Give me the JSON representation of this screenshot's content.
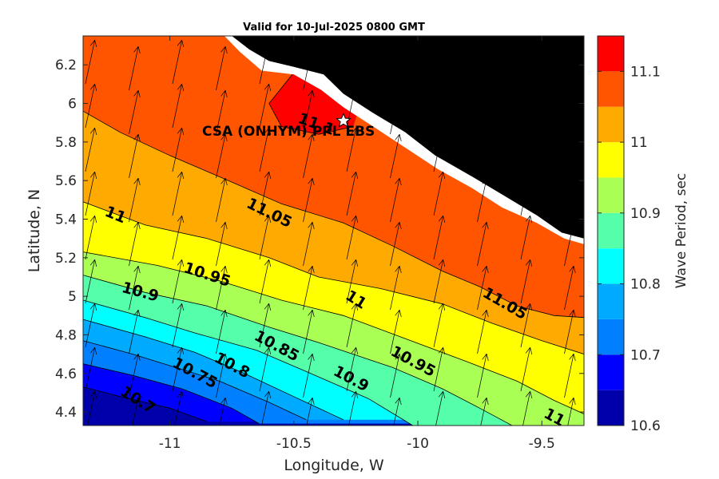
{
  "chart_data": {
    "type": "contour",
    "title": "Valid for 10-Jul-2025 0800 GMT",
    "xlabel": "Longitude, W",
    "ylabel": "Latitude, N",
    "xlim": [
      -11.35,
      -9.33
    ],
    "ylim": [
      4.33,
      6.35
    ],
    "x_ticks": [
      -11,
      -10.5,
      -10,
      -9.5
    ],
    "x_tick_labels": [
      "-11",
      "-10.5",
      "-10",
      "-9.5"
    ],
    "y_ticks": [
      4.4,
      4.6,
      4.8,
      5.0,
      5.2,
      5.4,
      5.6,
      5.8,
      6.0,
      6.2
    ],
    "y_tick_labels": [
      "4.4",
      "4.6",
      "4.8",
      "5",
      "5.2",
      "5.4",
      "5.6",
      "5.8",
      "6",
      "6.2"
    ],
    "colorbar": {
      "label": "Wave Period, sec",
      "range": [
        10.6,
        11.15
      ],
      "tick_values": [
        10.6,
        10.7,
        10.8,
        10.9,
        11.0,
        11.1
      ],
      "tick_labels": [
        "10.6",
        "10.7",
        "10.8",
        "10.9",
        "11",
        "11.1"
      ]
    },
    "levels": [
      10.6,
      10.65,
      10.7,
      10.75,
      10.8,
      10.85,
      10.9,
      10.95,
      11.0,
      11.05,
      11.1,
      11.15
    ],
    "level_colors": [
      "#0000aa",
      "#0000ff",
      "#0080ff",
      "#00aaff",
      "#00ffff",
      "#55ffaa",
      "#aaff55",
      "#ffff00",
      "#ffaa00",
      "#ff5500",
      "#ff0000"
    ],
    "contours": [
      {
        "level": 10.65,
        "points": [
          [
            -11.35,
            4.53
          ],
          [
            -11.2,
            4.48
          ],
          [
            -11.0,
            4.42
          ],
          [
            -10.85,
            4.35
          ]
        ]
      },
      {
        "level": 10.7,
        "points": [
          [
            -11.35,
            4.65
          ],
          [
            -11.15,
            4.59
          ],
          [
            -10.95,
            4.52
          ],
          [
            -10.75,
            4.42
          ],
          [
            -10.64,
            4.34
          ]
        ]
      },
      {
        "level": 10.75,
        "points": [
          [
            -11.35,
            4.77
          ],
          [
            -11.15,
            4.7
          ],
          [
            -10.95,
            4.62
          ],
          [
            -10.8,
            4.56
          ],
          [
            -10.6,
            4.45
          ],
          [
            -10.45,
            4.36
          ]
        ]
      },
      {
        "level": 10.8,
        "points": [
          [
            -11.35,
            4.88
          ],
          [
            -11.1,
            4.79
          ],
          [
            -10.9,
            4.71
          ],
          [
            -10.7,
            4.6
          ],
          [
            -10.5,
            4.48
          ],
          [
            -10.3,
            4.36
          ]
        ]
      },
      {
        "level": 10.85,
        "points": [
          [
            -11.35,
            4.98
          ],
          [
            -11.1,
            4.89
          ],
          [
            -10.9,
            4.81
          ],
          [
            -10.65,
            4.72
          ],
          [
            -10.45,
            4.61
          ],
          [
            -10.2,
            4.47
          ],
          [
            -10.02,
            4.33
          ]
        ]
      },
      {
        "level": 10.9,
        "points": [
          [
            -11.35,
            5.11
          ],
          [
            -11.1,
            5.02
          ],
          [
            -10.85,
            4.95
          ],
          [
            -10.6,
            4.84
          ],
          [
            -10.4,
            4.76
          ],
          [
            -10.1,
            4.63
          ],
          [
            -9.9,
            4.52
          ],
          [
            -9.75,
            4.42
          ],
          [
            -9.62,
            4.33
          ]
        ]
      },
      {
        "level": 10.95,
        "points": [
          [
            -11.35,
            5.23
          ],
          [
            -11.05,
            5.16
          ],
          [
            -10.8,
            5.08
          ],
          [
            -10.55,
            4.98
          ],
          [
            -10.3,
            4.9
          ],
          [
            -10.05,
            4.78
          ],
          [
            -9.8,
            4.66
          ],
          [
            -9.6,
            4.56
          ],
          [
            -9.45,
            4.46
          ],
          [
            -9.33,
            4.39
          ]
        ]
      },
      {
        "level": 11.0,
        "points": [
          [
            -11.35,
            5.49
          ],
          [
            -11.1,
            5.37
          ],
          [
            -10.85,
            5.3
          ],
          [
            -10.6,
            5.2
          ],
          [
            -10.4,
            5.1
          ],
          [
            -10.15,
            5.04
          ],
          [
            -9.9,
            4.96
          ],
          [
            -9.7,
            4.86
          ],
          [
            -9.5,
            4.77
          ],
          [
            -9.33,
            4.7
          ]
        ]
      },
      {
        "level": 11.05,
        "points": [
          [
            -11.35,
            5.96
          ],
          [
            -11.2,
            5.85
          ],
          [
            -11.0,
            5.73
          ],
          [
            -10.8,
            5.62
          ],
          [
            -10.55,
            5.48
          ],
          [
            -10.3,
            5.38
          ],
          [
            -10.1,
            5.26
          ],
          [
            -9.9,
            5.13
          ],
          [
            -9.75,
            5.05
          ],
          [
            -9.6,
            4.95
          ],
          [
            -9.45,
            4.9
          ],
          [
            -9.33,
            4.89
          ]
        ]
      },
      {
        "level": 11.1,
        "points": [
          [
            -10.5,
            6.16
          ],
          [
            -10.6,
            6.0
          ],
          [
            -10.55,
            5.88
          ],
          [
            -10.4,
            5.84
          ],
          [
            -10.26,
            5.88
          ]
        ]
      }
    ],
    "contour_labels": [
      {
        "text": "11",
        "x": -11.22,
        "y": 5.42,
        "rotation": 22
      },
      {
        "text": "11.05",
        "x": -10.6,
        "y": 5.43,
        "rotation": 26
      },
      {
        "text": "10.95",
        "x": -10.85,
        "y": 5.11,
        "rotation": 18
      },
      {
        "text": "10.9",
        "x": -11.12,
        "y": 5.02,
        "rotation": 15
      },
      {
        "text": "11",
        "x": -10.25,
        "y": 4.98,
        "rotation": 32
      },
      {
        "text": "11.05",
        "x": -9.65,
        "y": 4.96,
        "rotation": 30
      },
      {
        "text": "10.85",
        "x": -10.57,
        "y": 4.74,
        "rotation": 28
      },
      {
        "text": "10.9",
        "x": -10.27,
        "y": 4.57,
        "rotation": 28
      },
      {
        "text": "10.95",
        "x": -10.02,
        "y": 4.66,
        "rotation": 28
      },
      {
        "text": "10.8",
        "x": -10.75,
        "y": 4.64,
        "rotation": 28
      },
      {
        "text": "10.75",
        "x": -10.9,
        "y": 4.6,
        "rotation": 28
      },
      {
        "text": "10.7",
        "x": -11.13,
        "y": 4.46,
        "rotation": 32
      },
      {
        "text": "11",
        "x": -9.45,
        "y": 4.37,
        "rotation": 28
      },
      {
        "text": "11.1",
        "x": -10.41,
        "y": 5.89,
        "rotation": 20
      }
    ],
    "land_polygon": [
      [
        -9.33,
        6.35
      ],
      [
        -10.75,
        6.35
      ],
      [
        -10.68,
        6.28
      ],
      [
        -10.6,
        6.22
      ],
      [
        -10.5,
        6.19
      ],
      [
        -10.38,
        6.15
      ],
      [
        -10.3,
        6.05
      ],
      [
        -10.18,
        5.95
      ],
      [
        -10.05,
        5.85
      ],
      [
        -9.93,
        5.73
      ],
      [
        -9.78,
        5.62
      ],
      [
        -9.65,
        5.52
      ],
      [
        -9.52,
        5.42
      ],
      [
        -9.42,
        5.33
      ],
      [
        -9.33,
        5.3
      ]
    ],
    "coast_fringe": [
      [
        -10.78,
        6.35
      ],
      [
        -10.72,
        6.27
      ],
      [
        -10.63,
        6.17
      ],
      [
        -10.5,
        6.15
      ],
      [
        -10.39,
        6.07
      ],
      [
        -10.3,
        5.98
      ],
      [
        -10.18,
        5.88
      ],
      [
        -10.05,
        5.77
      ],
      [
        -9.92,
        5.66
      ],
      [
        -9.78,
        5.56
      ],
      [
        -9.66,
        5.46
      ],
      [
        -9.52,
        5.38
      ],
      [
        -9.41,
        5.3
      ],
      [
        -9.33,
        5.27
      ]
    ],
    "station": {
      "label": "CSA (ONHYM) PPL EBS",
      "lon": -10.3,
      "lat": 5.91
    },
    "wave_direction_deg": 12,
    "legend": "right colorbar",
    "grid": false
  }
}
